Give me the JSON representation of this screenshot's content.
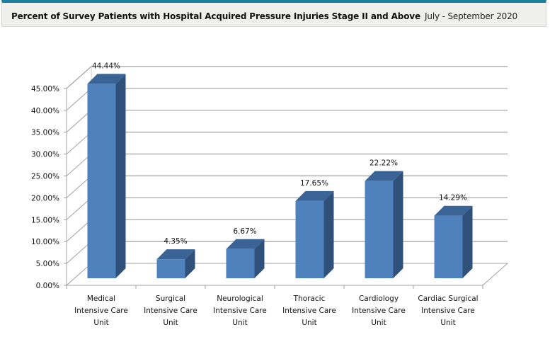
{
  "header": {
    "title": "Percent of Survey Patients with Hospital Acquired Pressure Injuries Stage II and Above",
    "period": "July - September 2020"
  },
  "colors": {
    "header_accent": "#1b7fa1",
    "bar_front": "#4f81bd",
    "bar_top": "#3a6396",
    "bar_side": "#2f5179",
    "grid": "#a0a0a0"
  },
  "chart_data": {
    "type": "bar",
    "style": "3d-column",
    "title": "Percent of Survey Patients with Hospital Acquired Pressure Injuries Stage II and Above",
    "subtitle": "July - September 2020",
    "xlabel": "",
    "ylabel": "",
    "ylim": [
      0,
      45
    ],
    "yticks": [
      0,
      5,
      10,
      15,
      20,
      25,
      30,
      35,
      40,
      45
    ],
    "ytick_labels": [
      "0.00%",
      "5.00%",
      "10.00%",
      "15.00%",
      "20.00%",
      "25.00%",
      "30.00%",
      "35.00%",
      "40.00%",
      "45.00%"
    ],
    "grid": true,
    "legend": "none",
    "categories": [
      [
        "Medical",
        "Intensive Care",
        "Unit"
      ],
      [
        "Surgical",
        "Intensive Care",
        "Unit"
      ],
      [
        "Neurological",
        "Intensive Care",
        "Unit"
      ],
      [
        "Thoracic",
        "Intensive Care",
        "Unit"
      ],
      [
        "Cardiology",
        "Intensive Care",
        "Unit"
      ],
      [
        "Cardiac Surgical",
        "Intensive Care",
        "Unit"
      ]
    ],
    "values": [
      44.44,
      4.35,
      6.67,
      17.65,
      22.22,
      14.29
    ],
    "data_labels": [
      "44.44%",
      "4.35%",
      "6.67%",
      "17.65%",
      "22.22%",
      "14.29%"
    ]
  }
}
